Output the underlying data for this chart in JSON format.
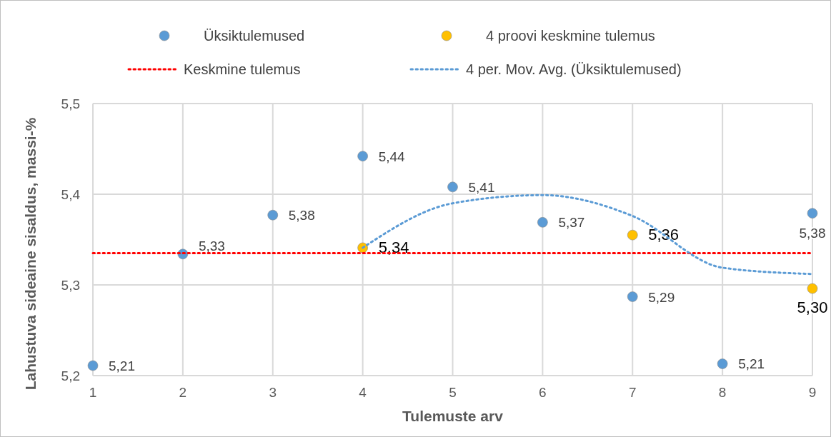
{
  "chart_data": {
    "type": "scatter",
    "xlabel": "Tulemuste arv",
    "ylabel": "Lahustuva sideaine sisaldus, massi-%",
    "xlim": [
      1,
      9
    ],
    "xticks": [
      1,
      2,
      3,
      4,
      5,
      6,
      7,
      8,
      9
    ],
    "ylim": [
      5.2,
      5.5
    ],
    "yticks": [
      {
        "value": 5.2,
        "label": "5,2"
      },
      {
        "value": 5.3,
        "label": "5,3"
      },
      {
        "value": 5.4,
        "label": "5,4"
      },
      {
        "value": 5.5,
        "label": "5,5"
      }
    ],
    "grid": true,
    "legend": "top",
    "series": [
      {
        "name": "Üksiktulemused",
        "color": "#5b9bd5",
        "marker": "circle",
        "x": [
          1,
          2,
          3,
          4,
          5,
          6,
          7,
          8,
          9
        ],
        "values": [
          5.211,
          5.334,
          5.377,
          5.442,
          5.408,
          5.369,
          5.287,
          5.213,
          5.379
        ],
        "value_labels": [
          "5,21",
          "5,33",
          "5,38",
          "5,44",
          "5,41",
          "5,37",
          "5,29",
          "5,21",
          "5,38"
        ]
      },
      {
        "name": "4 proovi keskmine tulemus",
        "color": "#ffc000",
        "marker": "circle",
        "x": [
          4,
          7,
          9
        ],
        "values": [
          5.341,
          5.355,
          5.296
        ],
        "value_labels": [
          "5,34",
          "5,36",
          "5,30"
        ]
      },
      {
        "name": "Keskmine tulemus",
        "type": "line",
        "color": "#ff0000",
        "line_style": "dotted",
        "marker": "none",
        "x": [
          1,
          9
        ],
        "values": [
          5.335,
          5.335
        ]
      },
      {
        "name": "4 per. Mov. Avg. (Üksiktulemused)",
        "type": "line",
        "color": "#5b9bd5",
        "line_style": "dotted",
        "marker": "none",
        "x": [
          4,
          5,
          6,
          7,
          8,
          9
        ],
        "values": [
          5.341,
          5.39,
          5.399,
          5.376,
          5.319,
          5.312
        ]
      }
    ]
  }
}
